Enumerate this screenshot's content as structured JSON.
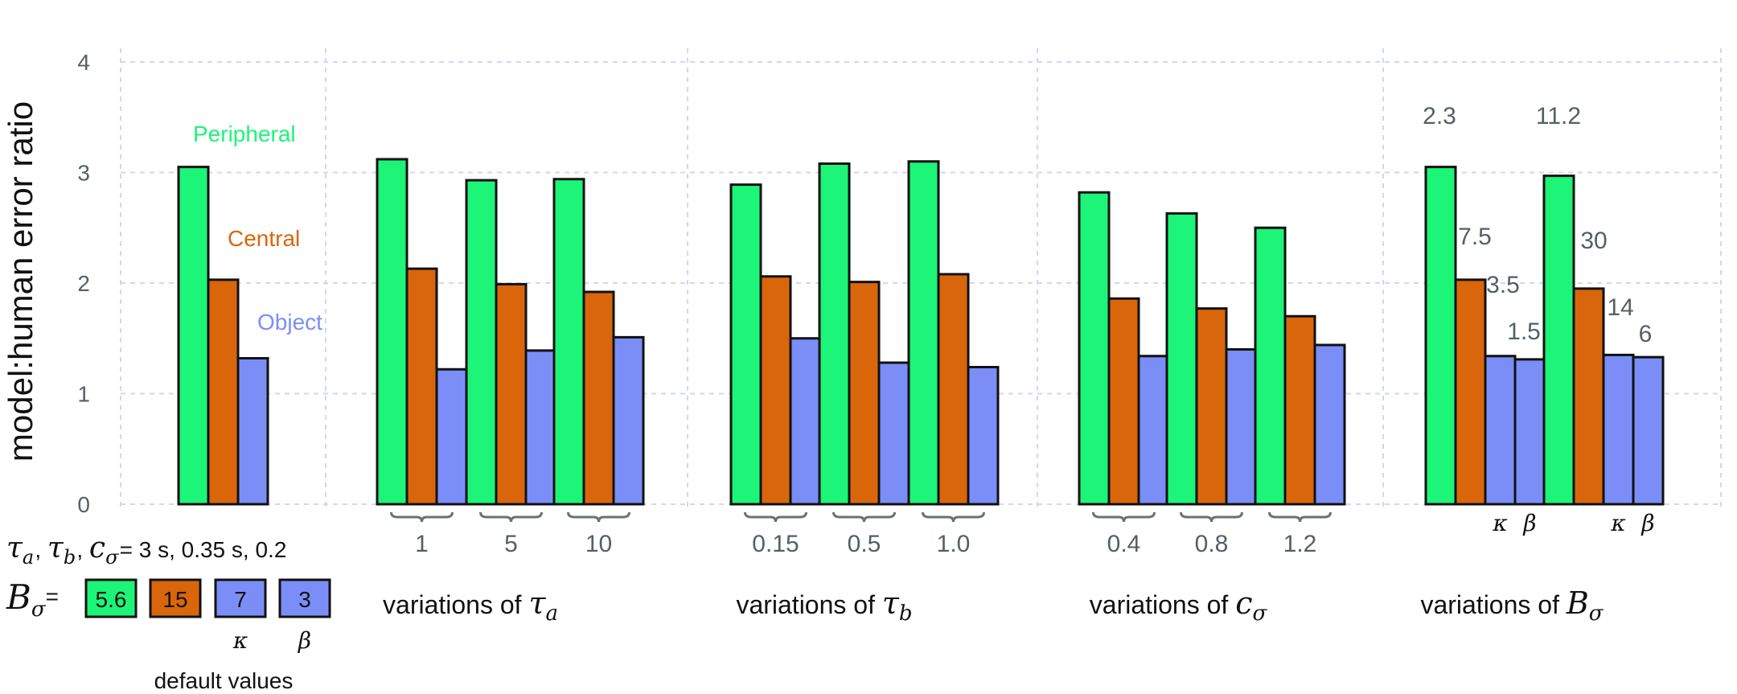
{
  "chart_data": {
    "type": "bar",
    "ylabel": "model:human error ratio",
    "ylim": [
      0,
      4
    ],
    "yticks": [
      "0",
      "1",
      "2",
      "3",
      "4"
    ],
    "grid": true,
    "series_names": [
      "Peripheral",
      "Central",
      "Object"
    ],
    "colors": {
      "Peripheral": "#1cf577",
      "Central": "#d9660b",
      "Object": "#7b8ef7"
    },
    "default_group": {
      "values": [
        3.05,
        2.03,
        1.32
      ]
    },
    "panels": [
      {
        "title_prefix": "variations of ",
        "symbol": "τ",
        "subscript": "a",
        "groups": [
          {
            "label": "1",
            "values": [
              3.12,
              2.13,
              1.22
            ]
          },
          {
            "label": "5",
            "values": [
              2.93,
              1.99,
              1.39
            ]
          },
          {
            "label": "10",
            "values": [
              2.94,
              1.92,
              1.51
            ]
          }
        ]
      },
      {
        "title_prefix": "variations of ",
        "symbol": "τ",
        "subscript": "b",
        "groups": [
          {
            "label": "0.15",
            "values": [
              2.89,
              2.06,
              1.5
            ]
          },
          {
            "label": "0.5",
            "values": [
              3.08,
              2.01,
              1.28
            ]
          },
          {
            "label": "1.0",
            "values": [
              3.1,
              2.08,
              1.24
            ]
          }
        ]
      },
      {
        "title_prefix": "variations of ",
        "symbol": "c",
        "subscript": "σ",
        "groups": [
          {
            "label": "0.4",
            "values": [
              2.82,
              1.86,
              1.34
            ]
          },
          {
            "label": "0.8",
            "values": [
              2.63,
              1.77,
              1.4
            ]
          },
          {
            "label": "1.2",
            "values": [
              2.5,
              1.7,
              1.44
            ]
          }
        ]
      },
      {
        "title_prefix": "variations of ",
        "symbol": "B",
        "subscript": "σ",
        "groups": [
          {
            "values": [
              3.05,
              2.03,
              1.34,
              1.31
            ],
            "value_labels": [
              "2.3",
              "7.5",
              "3.5",
              "1.5"
            ],
            "sub_labels": [
              "",
              "",
              "κ",
              "β"
            ]
          },
          {
            "values": [
              2.97,
              1.95,
              1.35,
              1.33
            ],
            "value_labels": [
              "11.2",
              "30",
              "14",
              "6"
            ],
            "sub_labels": [
              "",
              "",
              "κ",
              "β"
            ]
          }
        ]
      }
    ],
    "legend": [
      {
        "label": "Peripheral",
        "color": "#1cf577"
      },
      {
        "label": "Central",
        "color": "#d9660b"
      },
      {
        "label": "Object",
        "color": "#7b8ef7"
      }
    ]
  },
  "defaults": {
    "params_line_suffix": " = 3 s, 0.35 s, 0.2",
    "b_sigma_eq": "=",
    "boxes": [
      {
        "value": "5.6",
        "color": "#1cf577",
        "sub": ""
      },
      {
        "value": "15",
        "color": "#d9660b",
        "sub": ""
      },
      {
        "value": "7",
        "color": "#7b8ef7",
        "sub": "κ"
      },
      {
        "value": "3",
        "color": "#7b8ef7",
        "sub": "β"
      }
    ],
    "caption": "default values"
  }
}
